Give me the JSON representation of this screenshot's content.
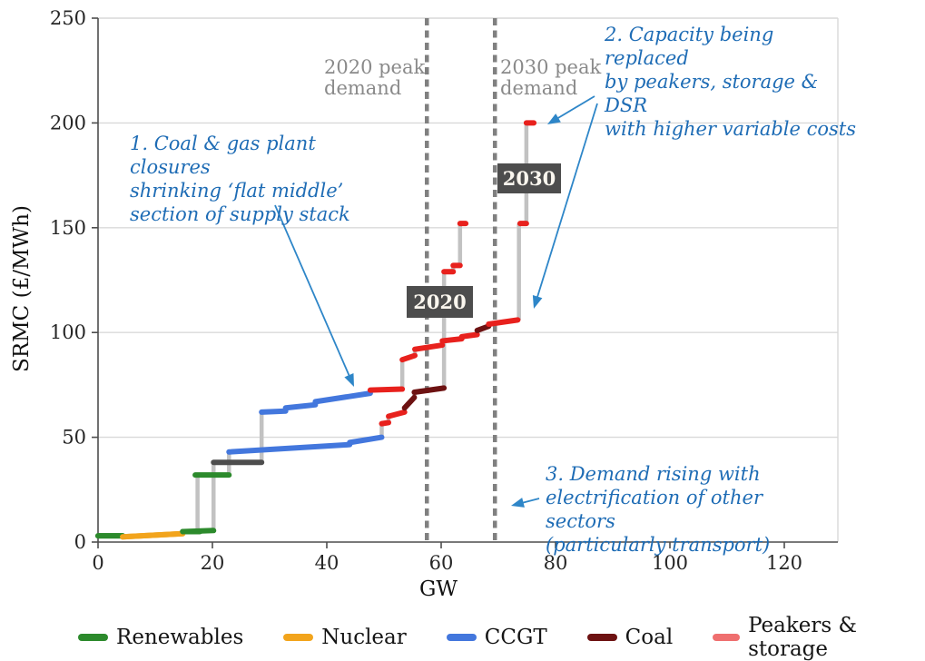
{
  "chart_data": {
    "type": "line",
    "title": "",
    "xlabel": "GW",
    "ylabel": "SRMC (£/MWh)",
    "xlim": [
      0,
      129.5
    ],
    "ylim": [
      0,
      250
    ],
    "x_ticks": [
      0,
      20,
      40,
      60,
      80,
      100,
      120
    ],
    "y_ticks": [
      0,
      50,
      100,
      150,
      200,
      250
    ],
    "grid": "horizontal",
    "legend_position": "bottom",
    "colors": {
      "renewables": "#2c8a2c",
      "nuclear": "#f2a41c",
      "ccgt": "#4377dd",
      "coal": "#6d1212",
      "peakers": "#e8211d",
      "peakers_legend": "#ef6f6f",
      "other_dark": "#4d4d4d",
      "connector": "#c2c2c2",
      "dashed_line": "#808080",
      "gridline": "#d9d9d9",
      "axis": "#4d4d4d",
      "tick_text": "#262626",
      "annotation_blue": "#1e6cb5",
      "arrow_blue": "#2e86c8",
      "peak_label_gray": "#8a8a8a",
      "badge_bg": "#4d4d4d",
      "badge_text": "#faf6ee"
    },
    "legend": [
      {
        "label": "Renewables",
        "color_key": "renewables"
      },
      {
        "label": "Nuclear",
        "color_key": "nuclear"
      },
      {
        "label": "CCGT",
        "color_key": "ccgt"
      },
      {
        "label": "Coal",
        "color_key": "coal"
      },
      {
        "label": "Peakers & storage",
        "color_key": "peakers_legend"
      }
    ],
    "peak_demand_lines": [
      {
        "label": "2020 peak\ndemand",
        "gw": 57.5
      },
      {
        "label": "2030 peak\ndemand",
        "gw": 69.4
      }
    ],
    "series": [
      {
        "name": "2020",
        "segments": [
          {
            "fuel": "renewables",
            "x0": 0,
            "x1": 4.3,
            "v0": 3,
            "v1": 3
          },
          {
            "fuel": "nuclear",
            "x0": 4.3,
            "x1": 14.8,
            "v0": 2.5,
            "v1": 4
          },
          {
            "fuel": "renewables",
            "x0": 14.8,
            "x1": 17.8,
            "v0": 5,
            "v1": 5
          },
          {
            "fuel": "renewables",
            "x0": 17.0,
            "x1": 22.9,
            "v0": 32,
            "v1": 32
          },
          {
            "fuel": "ccgt",
            "x0": 22.9,
            "x1": 44.0,
            "v0": 43,
            "v1": 46.5
          },
          {
            "fuel": "ccgt",
            "x0": 44.0,
            "x1": 49.6,
            "v0": 47.5,
            "v1": 50
          },
          {
            "fuel": "peakers",
            "x0": 49.6,
            "x1": 50.8,
            "v0": 56.5,
            "v1": 57
          },
          {
            "fuel": "peakers",
            "x0": 50.8,
            "x1": 53.6,
            "v0": 60,
            "v1": 62
          },
          {
            "fuel": "coal",
            "x0": 53.6,
            "x1": 55.3,
            "v0": 64,
            "v1": 69
          },
          {
            "fuel": "coal",
            "x0": 55.3,
            "x1": 60.5,
            "v0": 71.5,
            "v1": 73.5
          },
          {
            "fuel": "peakers",
            "x0": 60.5,
            "x1": 62.1,
            "v0": 129,
            "v1": 129
          },
          {
            "fuel": "peakers",
            "x0": 62.1,
            "x1": 63.3,
            "v0": 132,
            "v1": 132
          },
          {
            "fuel": "peakers",
            "x0": 63.3,
            "x1": 64.3,
            "v0": 152,
            "v1": 152
          }
        ]
      },
      {
        "name": "2030",
        "segments": [
          {
            "fuel": "renewables",
            "x0": 0,
            "x1": 4.3,
            "v0": 3,
            "v1": 3
          },
          {
            "fuel": "nuclear",
            "x0": 4.3,
            "x1": 14.8,
            "v0": 2.5,
            "v1": 4
          },
          {
            "fuel": "renewables",
            "x0": 14.8,
            "x1": 20.2,
            "v0": 5,
            "v1": 5.5
          },
          {
            "fuel": "other",
            "x0": 20.2,
            "x1": 28.6,
            "v0": 38,
            "v1": 38
          },
          {
            "fuel": "ccgt",
            "x0": 28.6,
            "x1": 32.8,
            "v0": 62,
            "v1": 62.5
          },
          {
            "fuel": "ccgt",
            "x0": 32.8,
            "x1": 38.0,
            "v0": 64,
            "v1": 65.5
          },
          {
            "fuel": "ccgt",
            "x0": 38.0,
            "x1": 47.6,
            "v0": 67,
            "v1": 71
          },
          {
            "fuel": "peakers",
            "x0": 47.6,
            "x1": 53.2,
            "v0": 72.5,
            "v1": 73
          },
          {
            "fuel": "peakers",
            "x0": 53.2,
            "x1": 55.4,
            "v0": 87,
            "v1": 89
          },
          {
            "fuel": "peakers",
            "x0": 55.4,
            "x1": 60.2,
            "v0": 92,
            "v1": 94
          },
          {
            "fuel": "peakers",
            "x0": 60.2,
            "x1": 63.6,
            "v0": 96,
            "v1": 97
          },
          {
            "fuel": "peakers",
            "x0": 63.6,
            "x1": 66.3,
            "v0": 98,
            "v1": 99
          },
          {
            "fuel": "coal",
            "x0": 66.3,
            "x1": 68.3,
            "v0": 101,
            "v1": 103
          },
          {
            "fuel": "peakers",
            "x0": 68.3,
            "x1": 73.4,
            "v0": 104,
            "v1": 106
          },
          {
            "fuel": "peakers",
            "x0": 73.8,
            "x1": 74.9,
            "v0": 152,
            "v1": 152
          },
          {
            "fuel": "peakers",
            "x0": 74.9,
            "x1": 76.2,
            "v0": 200,
            "v1": 200
          }
        ]
      }
    ],
    "annotations": [
      {
        "id": 1,
        "text": "1. Coal & gas plant closures\nshrinking ‘flat middle’\nsection of supply stack"
      },
      {
        "id": 2,
        "text": "2. Capacity being replaced\nby peakers, storage & DSR\nwith higher variable costs"
      },
      {
        "id": 3,
        "text": "3. Demand rising with\nelectrification of other sectors\n(particularly transport)"
      }
    ],
    "arrows": [
      {
        "from": [
          303,
          226
        ],
        "to": [
          390,
          426
        ]
      },
      {
        "from": [
          655,
          106
        ],
        "to": [
          603,
          137
        ]
      },
      {
        "from": [
          658,
          114
        ],
        "to": [
          588,
          340
        ]
      },
      {
        "from": [
          594,
          549
        ],
        "to": [
          563,
          557
        ]
      }
    ]
  }
}
